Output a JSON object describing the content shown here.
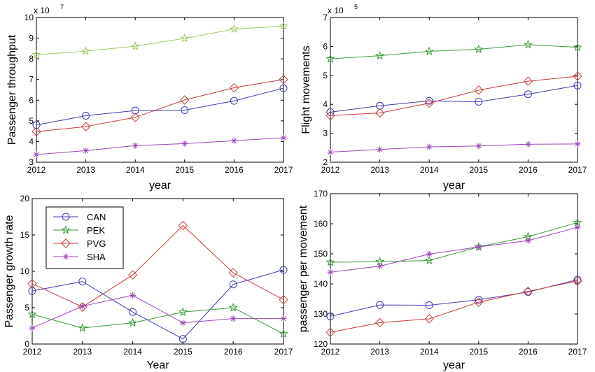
{
  "chart_data": [
    {
      "type": "line",
      "xlabel": "year",
      "ylabel": "Passenger throughput",
      "exponent_base": "x 10",
      "exponent_power": "7",
      "x": [
        "2012",
        "2013",
        "2014",
        "2015",
        "2016",
        "2017"
      ],
      "ylim": [
        3,
        10
      ],
      "yticks": [
        "3",
        "4",
        "5",
        "6",
        "7",
        "8",
        "9",
        "10"
      ],
      "grid": false,
      "series": [
        {
          "key": "CAN",
          "color": "#3a3ab8",
          "marker": "circle",
          "values": [
            4.8,
            5.25,
            5.5,
            5.52,
            5.97,
            6.58
          ]
        },
        {
          "key": "PEK",
          "color": "#9acd62",
          "marker": "star",
          "values": [
            8.2,
            8.37,
            8.61,
            8.99,
            9.44,
            9.58
          ]
        },
        {
          "key": "PVG",
          "color": "#cc3a3a",
          "marker": "diamond",
          "values": [
            4.48,
            4.72,
            5.17,
            6.01,
            6.6,
            7.0
          ]
        },
        {
          "key": "SHA",
          "color": "#9b44b8",
          "marker": "asterisk",
          "values": [
            3.37,
            3.56,
            3.8,
            3.9,
            4.04,
            4.18
          ]
        }
      ]
    },
    {
      "type": "line",
      "xlabel": "year",
      "ylabel": "Flight movements",
      "exponent_base": "x 10",
      "exponent_power": "5",
      "x": [
        "2012",
        "2013",
        "2014",
        "2015",
        "2016",
        "2017"
      ],
      "ylim": [
        2,
        7
      ],
      "yticks": [
        "2",
        "3",
        "4",
        "5",
        "6",
        "7"
      ],
      "grid": false,
      "series": [
        {
          "key": "CAN",
          "color": "#3a3ab8",
          "marker": "circle",
          "values": [
            3.73,
            3.95,
            4.12,
            4.09,
            4.35,
            4.65
          ]
        },
        {
          "key": "PEK",
          "color": "#3a9a3a",
          "marker": "star",
          "values": [
            5.57,
            5.68,
            5.83,
            5.9,
            6.06,
            5.97
          ]
        },
        {
          "key": "PVG",
          "color": "#cc3a3a",
          "marker": "diamond",
          "values": [
            3.61,
            3.7,
            4.04,
            4.49,
            4.8,
            4.97
          ]
        },
        {
          "key": "SHA",
          "color": "#9b44b8",
          "marker": "asterisk",
          "values": [
            2.35,
            2.44,
            2.53,
            2.56,
            2.62,
            2.63
          ]
        }
      ]
    },
    {
      "type": "line",
      "xlabel": "Year",
      "ylabel": "Passenger growth rate",
      "x": [
        "2012",
        "2013",
        "2014",
        "2015",
        "2016",
        "2017"
      ],
      "ylim": [
        0,
        20
      ],
      "yticks": [
        "0",
        "5",
        "10",
        "15",
        "20"
      ],
      "grid": false,
      "legend_position": "top-left",
      "series": [
        {
          "name": "CAN",
          "color": "#3a3ab8",
          "marker": "circle",
          "values": [
            7.3,
            8.6,
            4.4,
            0.7,
            8.2,
            10.2
          ]
        },
        {
          "name": "PEK",
          "color": "#3a9a3a",
          "marker": "star",
          "values": [
            4.1,
            2.2,
            2.9,
            4.4,
            5.0,
            1.4
          ]
        },
        {
          "name": "PVG",
          "color": "#cc3a3a",
          "marker": "diamond",
          "values": [
            8.3,
            5.1,
            9.5,
            16.3,
            9.8,
            6.1
          ]
        },
        {
          "name": "SHA",
          "color": "#9b44b8",
          "marker": "asterisk",
          "values": [
            2.2,
            5.2,
            6.7,
            2.9,
            3.5,
            3.5
          ]
        }
      ]
    },
    {
      "type": "line",
      "xlabel": "year",
      "ylabel": "passenger per movement",
      "x": [
        "2012",
        "2013",
        "2014",
        "2015",
        "2016",
        "2017"
      ],
      "ylim": [
        120,
        170
      ],
      "yticks": [
        "120",
        "130",
        "140",
        "150",
        "160",
        "170"
      ],
      "grid": false,
      "series": [
        {
          "key": "CAN",
          "color": "#3a3ab8",
          "marker": "circle",
          "values": [
            129.2,
            133.0,
            132.9,
            134.7,
            137.3,
            141.4
          ]
        },
        {
          "key": "PEK",
          "color": "#3a9a3a",
          "marker": "star",
          "values": [
            147.2,
            147.4,
            147.8,
            152.3,
            155.7,
            160.4
          ]
        },
        {
          "key": "PVG",
          "color": "#cc3a3a",
          "marker": "diamond",
          "values": [
            123.9,
            127.1,
            128.4,
            133.9,
            137.5,
            141.0
          ]
        },
        {
          "key": "SHA",
          "color": "#9b44b8",
          "marker": "asterisk",
          "values": [
            143.9,
            145.9,
            149.9,
            152.3,
            154.4,
            158.8
          ]
        }
      ]
    }
  ]
}
